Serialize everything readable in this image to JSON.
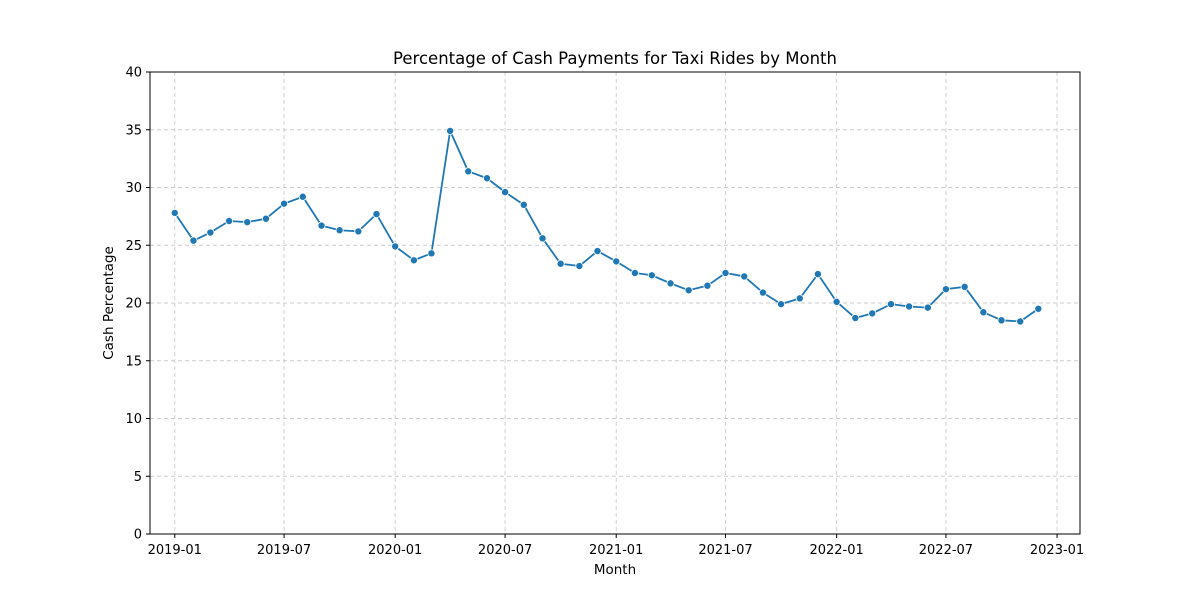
{
  "chart_data": {
    "type": "line",
    "title": "Percentage of Cash Payments for Taxi Rides by Month",
    "xlabel": "Month",
    "ylabel": "Cash Percentage",
    "ylim": [
      0,
      40
    ],
    "xlim": [
      "2018-11-21",
      "2023-02-08"
    ],
    "yticks": [
      0,
      5,
      10,
      15,
      20,
      25,
      30,
      35,
      40
    ],
    "xticks": [
      "2019-01",
      "2019-07",
      "2020-01",
      "2020-07",
      "2021-01",
      "2021-07",
      "2022-01",
      "2022-07",
      "2023-01"
    ],
    "grid": true,
    "color": "#1f77b4",
    "series": [
      {
        "x": [
          "2019-01",
          "2019-02",
          "2019-03",
          "2019-04",
          "2019-05",
          "2019-06",
          "2019-07",
          "2019-08",
          "2019-09",
          "2019-10",
          "2019-11",
          "2019-12",
          "2020-01",
          "2020-02",
          "2020-03",
          "2020-04",
          "2020-05",
          "2020-06",
          "2020-07",
          "2020-08",
          "2020-09",
          "2020-10",
          "2020-11",
          "2020-12",
          "2021-01",
          "2021-02",
          "2021-03",
          "2021-04",
          "2021-05",
          "2021-06",
          "2021-07",
          "2021-08",
          "2021-09",
          "2021-10",
          "2021-11",
          "2021-12",
          "2022-01",
          "2022-02",
          "2022-03",
          "2022-04",
          "2022-05",
          "2022-06",
          "2022-07",
          "2022-08",
          "2022-09",
          "2022-10",
          "2022-11",
          "2022-12"
        ],
        "values": [
          27.8,
          25.4,
          26.1,
          27.1,
          27.0,
          27.3,
          28.6,
          29.2,
          26.7,
          26.3,
          26.2,
          27.7,
          24.9,
          23.7,
          24.3,
          34.9,
          31.4,
          30.8,
          29.6,
          28.5,
          25.6,
          23.4,
          23.2,
          24.5,
          23.6,
          22.6,
          22.4,
          21.7,
          21.1,
          21.5,
          22.6,
          22.3,
          20.9,
          19.9,
          20.4,
          22.5,
          20.1,
          18.7,
          19.1,
          19.9,
          19.7,
          19.6,
          21.2,
          21.4,
          19.2,
          18.5,
          18.4,
          19.5
        ]
      }
    ]
  }
}
